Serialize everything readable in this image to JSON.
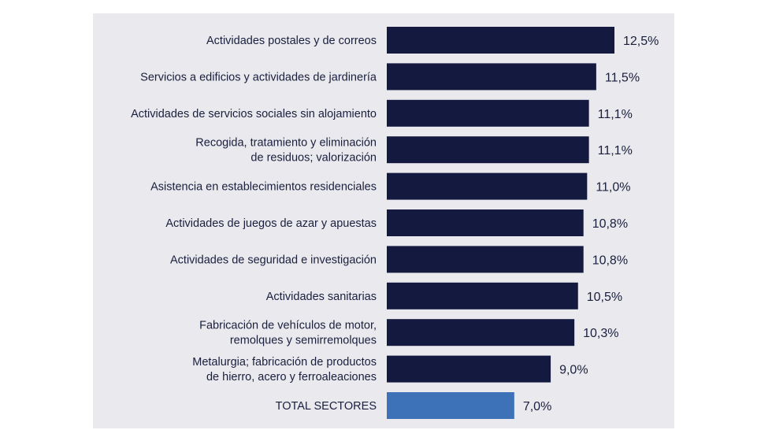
{
  "chart_data": {
    "type": "bar",
    "orientation": "horizontal",
    "categories": [
      [
        "Actividades postales y de correos"
      ],
      [
        "Servicios a edificios y actividades de jardinería"
      ],
      [
        "Actividades de servicios sociales sin alojamiento"
      ],
      [
        "Recogida, tratamiento y eliminación",
        "de residuos; valorización"
      ],
      [
        "Asistencia en establecimientos residenciales"
      ],
      [
        "Actividades de juegos de azar y apuestas"
      ],
      [
        "Actividades de seguridad e investigación"
      ],
      [
        "Actividades sanitarias"
      ],
      [
        "Fabricación de vehículos de motor,",
        "remolques y semirremolques"
      ],
      [
        "Metalurgia; fabricación de productos",
        "de hierro, acero y ferroaleaciones"
      ],
      [
        "TOTAL SECTORES"
      ]
    ],
    "values": [
      12.5,
      11.5,
      11.1,
      11.1,
      11.0,
      10.8,
      10.8,
      10.5,
      10.3,
      9.0,
      7.0
    ],
    "data_labels": [
      "12,5%",
      "11,5%",
      "11,1%",
      "11,1%",
      "11,0%",
      "10,8%",
      "10,8%",
      "10,5%",
      "10,3%",
      "9,0%",
      "7,0%"
    ],
    "highlight_index": 10,
    "xlim": [
      0,
      12.5
    ],
    "grid": false,
    "colors": {
      "bar": "#141a3f",
      "highlight": "#3d72b8",
      "background": "#e9e9ee",
      "text": "#1a1f3d"
    }
  }
}
